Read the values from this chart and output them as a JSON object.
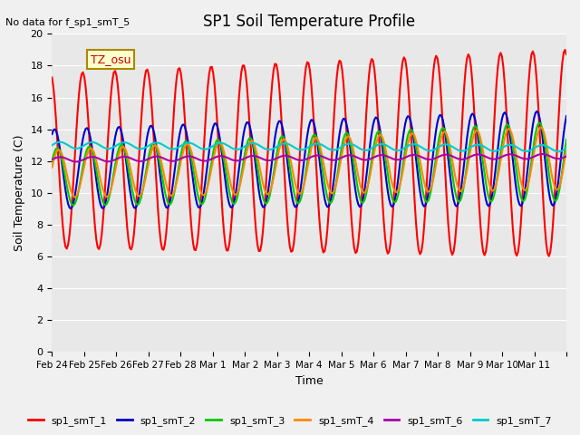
{
  "title": "SP1 Soil Temperature Profile",
  "xlabel": "Time",
  "ylabel": "Soil Temperature (C)",
  "note": "No data for f_sp1_smT_5",
  "tz_label": "TZ_osu",
  "ylim": [
    0,
    20
  ],
  "yticks": [
    0,
    2,
    4,
    6,
    8,
    10,
    12,
    14,
    16,
    18,
    20
  ],
  "bg_color": "#e8e8e8",
  "fig_color": "#f0f0f0",
  "series": {
    "sp1_smT_1": {
      "color": "#ff0000",
      "lw": 1.5
    },
    "sp1_smT_2": {
      "color": "#0000cc",
      "lw": 1.5
    },
    "sp1_smT_3": {
      "color": "#00cc00",
      "lw": 1.5
    },
    "sp1_smT_4": {
      "color": "#ff8800",
      "lw": 1.5
    },
    "sp1_smT_6": {
      "color": "#aa00aa",
      "lw": 1.5
    },
    "sp1_smT_7": {
      "color": "#00cccc",
      "lw": 1.5
    }
  },
  "xtick_labels": [
    "Feb 24",
    "Feb 25",
    "Feb 26",
    "Feb 27",
    "Feb 28",
    "Mar 1",
    "Mar 2",
    "Mar 3",
    "Mar 4",
    "Mar 5",
    "Mar 6",
    "Mar 7",
    "Mar 8",
    "Mar 9",
    "Mar 10",
    "Mar 11",
    ""
  ]
}
